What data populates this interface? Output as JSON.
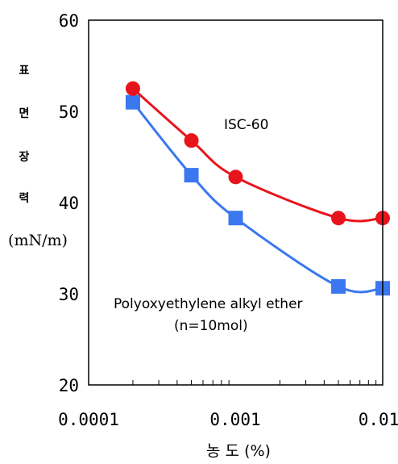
{
  "chart_data": {
    "type": "line",
    "x": [
      0.0002,
      0.0005,
      0.001,
      0.005,
      0.01
    ],
    "x_scale": "log",
    "xlim": [
      0.0001,
      0.01
    ],
    "xticks": [
      "0.0001",
      "0.001",
      "0.01"
    ],
    "ylim": [
      20,
      60
    ],
    "yticks": [
      "20",
      "30",
      "40",
      "50",
      "60"
    ],
    "ylabel_chars": [
      "표",
      "면",
      "장",
      "력"
    ],
    "ylabel_unit": "(mN/m)",
    "xlabel": "농 도 (%)",
    "grid": false,
    "series": [
      {
        "name": "ISC-60",
        "color": "#e8141c",
        "marker": "circle",
        "values": [
          52.5,
          46.8,
          42.8,
          38.3,
          38.3
        ]
      },
      {
        "name": "Polyoxyethylene alkyl ether",
        "name_line2": "(n=10mol)",
        "color": "#3b78f0",
        "marker": "square",
        "values": [
          51.0,
          43.0,
          38.3,
          30.8,
          30.6
        ]
      }
    ]
  }
}
